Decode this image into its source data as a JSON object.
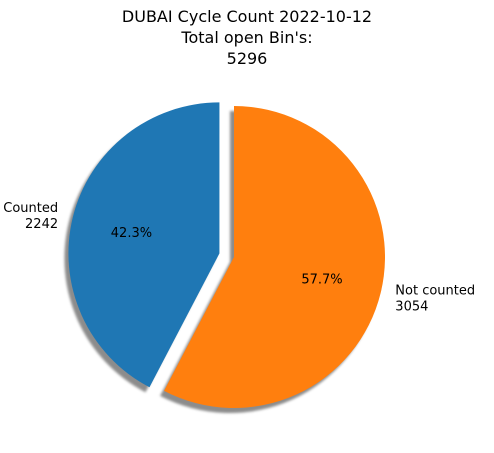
{
  "chart_data": {
    "type": "pie",
    "title": [
      "DUBAI Cycle Count 2022-10-12",
      "Total open Bin's:",
      "5296"
    ],
    "slices": [
      {
        "label": "Counted",
        "value": 2242,
        "percent_label": "42.3%",
        "color": "#1f77b4",
        "explode": true
      },
      {
        "label": "Not counted",
        "value": 3054,
        "percent_label": "57.7%",
        "color": "#ff7f0e",
        "explode": false
      }
    ],
    "start_angle_deg": 90,
    "shadow": true
  }
}
